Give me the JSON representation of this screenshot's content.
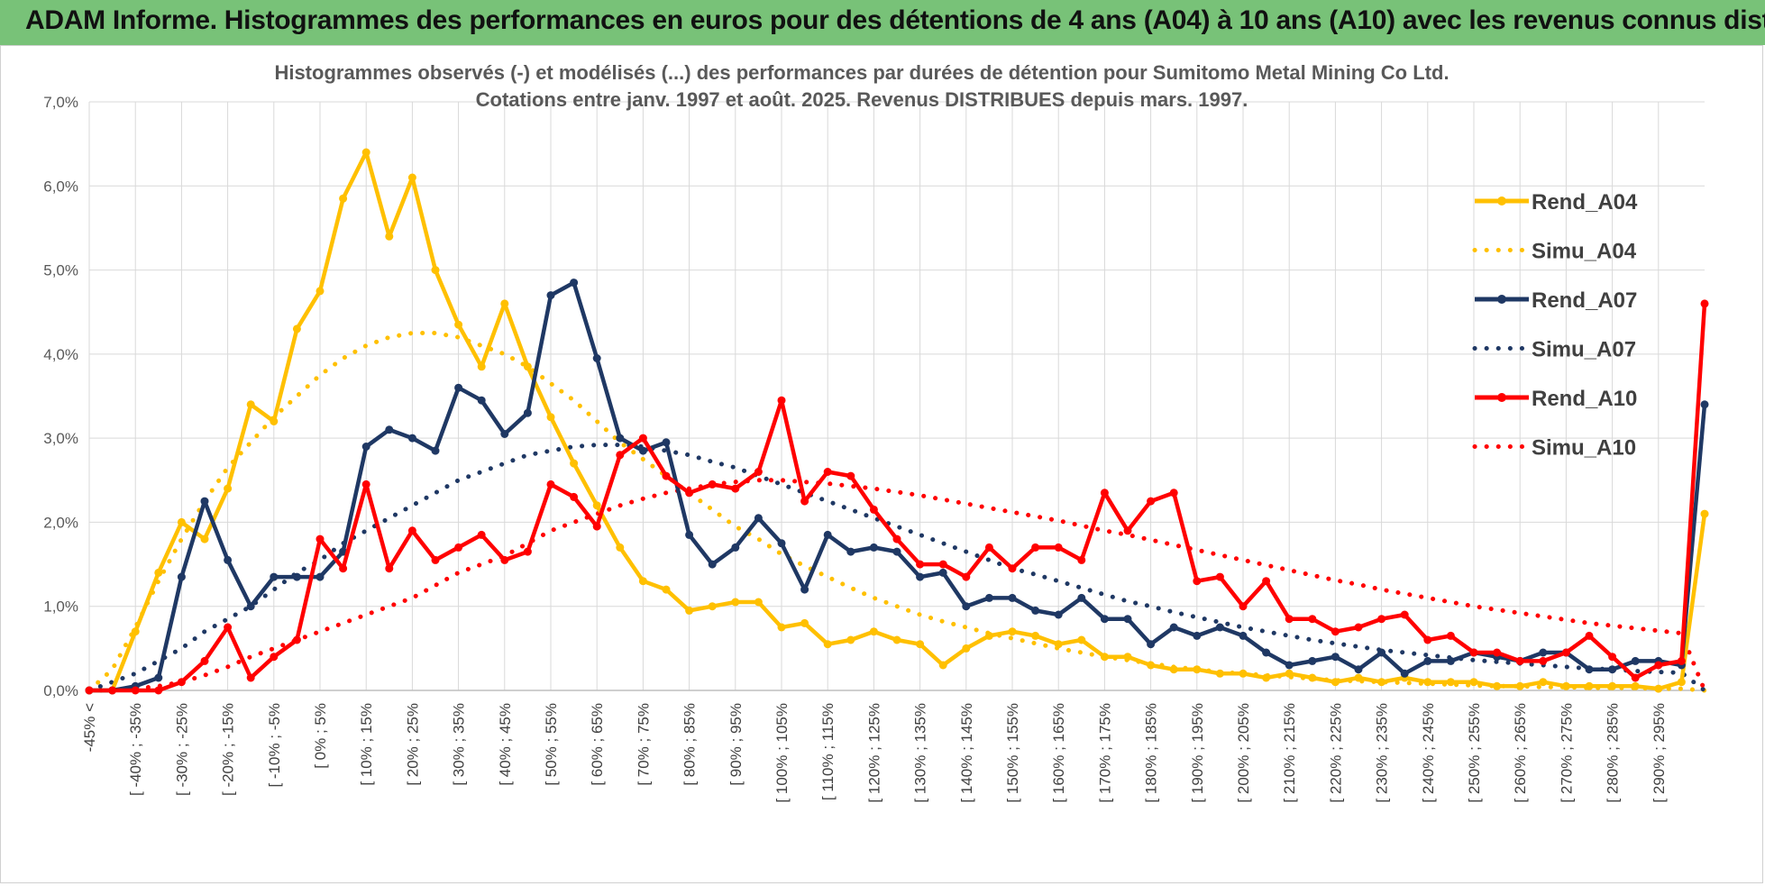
{
  "header": {
    "banner_title": "ADAM Informe. Histogrammes des performances en euros pour des détentions de 4 ans (A04) à 10 ans (A10) avec les revenus connus distribués"
  },
  "colors": {
    "banner": "#78c278",
    "A04": "#ffc000",
    "A07": "#1f3864",
    "A10": "#ff0000",
    "grid": "#d9d9d9"
  },
  "chart_data": {
    "type": "line",
    "title": "Histogrammes observés (-) et modélisés (...) des performances par durées de détention pour Sumitomo Metal Mining Co Ltd.",
    "subtitle": "Cotations entre janv. 1997 et août. 2025. Revenus DISTRIBUES depuis mars. 1997.",
    "xlabel": "",
    "ylabel": "",
    "ylim": [
      0,
      7
    ],
    "y_unit": "%",
    "y_ticks": [
      "0,0%",
      "1,0%",
      "2,0%",
      "3,0%",
      "4,0%",
      "5,0%",
      "6,0%",
      "7,0%"
    ],
    "grid": true,
    "legend_position": "right",
    "x_ticks": [
      "-45% <",
      "[ -40% ; -35%",
      "[ -30% ; -25%",
      "[ -20% ; -15%",
      "[ -10% ; -5%",
      "[ 0% ; 5%",
      "[ 10% ; 15%",
      "[ 20% ; 25%",
      "[ 30% ; 35%",
      "[ 40% ; 45%",
      "[ 50% ; 55%",
      "[ 60% ; 65%",
      "[ 70% ; 75%",
      "[ 80% ; 85%",
      "[ 90% ; 95%",
      "[ 100% ; 105%",
      "[ 110% ; 115%",
      "[ 120% ; 125%",
      "[ 130% ; 135%",
      "[ 140% ; 145%",
      "[ 150% ; 155%",
      "[ 160% ; 165%",
      "[ 170% ; 175%",
      "[ 180% ; 185%",
      "[ 190% ; 195%",
      "[ 200% ; 205%",
      "[ 210% ; 215%",
      "[ 220% ; 225%",
      "[ 230% ; 235%",
      "[ 240% ; 245%",
      "[ 250% ; 255%",
      "[ 260% ; 265%",
      "[ 270% ; 275%",
      "[ 280% ; 285%",
      "[ 290% ; 295%"
    ],
    "series": [
      {
        "name": "Rend_A04",
        "style": "solid",
        "color": "#ffc000",
        "values": [
          0.0,
          0.0,
          0.7,
          1.4,
          2.0,
          1.8,
          2.4,
          3.4,
          3.2,
          4.3,
          4.75,
          5.85,
          6.4,
          5.4,
          6.1,
          5.0,
          4.35,
          3.85,
          4.6,
          3.85,
          3.25,
          2.7,
          2.2,
          1.7,
          1.3,
          1.2,
          0.95,
          1.0,
          1.05,
          1.05,
          0.75,
          0.8,
          0.55,
          0.6,
          0.7,
          0.6,
          0.55,
          0.3,
          0.5,
          0.65,
          0.7,
          0.65,
          0.55,
          0.6,
          0.4,
          0.4,
          0.3,
          0.25,
          0.25,
          0.2,
          0.2,
          0.15,
          0.2,
          0.15,
          0.1,
          0.15,
          0.1,
          0.15,
          0.1,
          0.1,
          0.1,
          0.05,
          0.05,
          0.1,
          0.05,
          0.05,
          0.05,
          0.05,
          0.02,
          0.1,
          2.1
        ]
      },
      {
        "name": "Simu_A04",
        "style": "dotted",
        "color": "#ffc000",
        "values": [
          0.0,
          0.25,
          0.75,
          1.3,
          1.8,
          2.25,
          2.65,
          2.95,
          3.25,
          3.5,
          3.75,
          3.95,
          4.1,
          4.2,
          4.25,
          4.25,
          4.2,
          4.1,
          4.0,
          3.85,
          3.65,
          3.45,
          3.2,
          2.95,
          2.75,
          2.55,
          2.35,
          2.15,
          1.95,
          1.8,
          1.62,
          1.48,
          1.35,
          1.22,
          1.1,
          1.0,
          0.9,
          0.82,
          0.75,
          0.68,
          0.62,
          0.56,
          0.5,
          0.45,
          0.4,
          0.36,
          0.32,
          0.28,
          0.25,
          0.22,
          0.2,
          0.18,
          0.16,
          0.14,
          0.12,
          0.11,
          0.1,
          0.09,
          0.08,
          0.07,
          0.06,
          0.05,
          0.05,
          0.04,
          0.04,
          0.03,
          0.03,
          0.03,
          0.02,
          0.02,
          0.0
        ]
      },
      {
        "name": "Rend_A07",
        "style": "solid",
        "color": "#1f3864",
        "values": [
          0.0,
          0.0,
          0.05,
          0.15,
          1.35,
          2.25,
          1.55,
          1.0,
          1.35,
          1.35,
          1.35,
          1.65,
          2.9,
          3.1,
          3.0,
          2.85,
          3.6,
          3.45,
          3.05,
          3.3,
          4.7,
          4.85,
          3.95,
          3.0,
          2.85,
          2.95,
          1.85,
          1.5,
          1.7,
          2.05,
          1.75,
          1.2,
          1.85,
          1.65,
          1.7,
          1.65,
          1.35,
          1.4,
          1.0,
          1.1,
          1.1,
          0.95,
          0.9,
          1.1,
          0.85,
          0.85,
          0.55,
          0.75,
          0.65,
          0.75,
          0.65,
          0.45,
          0.3,
          0.35,
          0.4,
          0.25,
          0.45,
          0.2,
          0.35,
          0.35,
          0.45,
          0.4,
          0.35,
          0.45,
          0.45,
          0.25,
          0.25,
          0.35,
          0.35,
          0.3,
          3.4
        ]
      },
      {
        "name": "Simu_A07",
        "style": "dotted",
        "color": "#1f3864",
        "values": [
          0.0,
          0.1,
          0.2,
          0.35,
          0.5,
          0.7,
          0.85,
          1.0,
          1.2,
          1.4,
          1.55,
          1.75,
          1.9,
          2.05,
          2.2,
          2.35,
          2.5,
          2.6,
          2.7,
          2.8,
          2.85,
          2.9,
          2.92,
          2.92,
          2.9,
          2.85,
          2.8,
          2.72,
          2.65,
          2.55,
          2.45,
          2.35,
          2.25,
          2.15,
          2.05,
          1.95,
          1.85,
          1.75,
          1.65,
          1.55,
          1.45,
          1.38,
          1.3,
          1.22,
          1.14,
          1.06,
          1.0,
          0.93,
          0.87,
          0.81,
          0.75,
          0.7,
          0.65,
          0.6,
          0.56,
          0.52,
          0.48,
          0.45,
          0.42,
          0.39,
          0.36,
          0.34,
          0.32,
          0.3,
          0.28,
          0.26,
          0.25,
          0.23,
          0.22,
          0.21,
          0.0
        ]
      },
      {
        "name": "Rend_A10",
        "style": "solid",
        "color": "#ff0000",
        "values": [
          0.0,
          0.0,
          0.0,
          0.0,
          0.1,
          0.35,
          0.75,
          0.15,
          0.4,
          0.6,
          1.8,
          1.45,
          2.45,
          1.45,
          1.9,
          1.55,
          1.7,
          1.85,
          1.55,
          1.65,
          2.45,
          2.3,
          1.95,
          2.8,
          3.0,
          2.55,
          2.35,
          2.45,
          2.4,
          2.6,
          3.45,
          2.25,
          2.6,
          2.55,
          2.15,
          1.8,
          1.5,
          1.5,
          1.35,
          1.7,
          1.45,
          1.7,
          1.7,
          1.55,
          2.35,
          1.9,
          2.25,
          2.35,
          1.3,
          1.35,
          1.0,
          1.3,
          0.85,
          0.85,
          0.7,
          0.75,
          0.85,
          0.9,
          0.6,
          0.65,
          0.45,
          0.45,
          0.35,
          0.35,
          0.45,
          0.65,
          0.4,
          0.15,
          0.3,
          0.35,
          4.6
        ]
      },
      {
        "name": "Simu_A10",
        "style": "dotted",
        "color": "#ff0000",
        "values": [
          0.0,
          0.0,
          0.02,
          0.05,
          0.1,
          0.18,
          0.28,
          0.4,
          0.5,
          0.6,
          0.7,
          0.8,
          0.9,
          1.0,
          1.1,
          1.25,
          1.4,
          1.5,
          1.6,
          1.75,
          1.9,
          2.0,
          2.1,
          2.2,
          2.28,
          2.35,
          2.4,
          2.45,
          2.48,
          2.5,
          2.5,
          2.48,
          2.46,
          2.43,
          2.4,
          2.36,
          2.32,
          2.27,
          2.22,
          2.17,
          2.12,
          2.07,
          2.02,
          1.96,
          1.9,
          1.85,
          1.79,
          1.73,
          1.67,
          1.61,
          1.55,
          1.49,
          1.43,
          1.37,
          1.31,
          1.26,
          1.2,
          1.15,
          1.1,
          1.05,
          1.0,
          0.96,
          0.92,
          0.88,
          0.84,
          0.8,
          0.77,
          0.74,
          0.71,
          0.68,
          0.0
        ]
      }
    ]
  }
}
